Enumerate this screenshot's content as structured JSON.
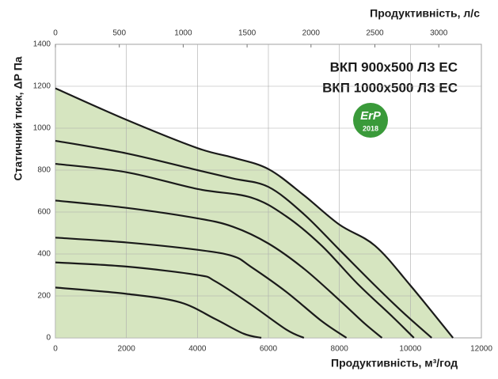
{
  "chart_data": {
    "type": "line",
    "titles": [
      "ВКП 900x500 ЛЗ ЕС",
      "ВКП 1000x500 ЛЗ ЕС"
    ],
    "badge": {
      "text": "ErP",
      "year": "2018",
      "color": "#3a9a3a"
    },
    "xlabel": "Продуктивність, м³/год",
    "x2label": "Продуктивність, л/с",
    "ylabel": "Статичний тиск, ΔР Па",
    "xlim": [
      0,
      12000
    ],
    "xticks": [
      0,
      2000,
      4000,
      6000,
      8000,
      10000,
      12000
    ],
    "x2lim": [
      0,
      3333.33
    ],
    "x2ticks": [
      0,
      500,
      1000,
      1500,
      2000,
      2500,
      3000
    ],
    "ylim": [
      0,
      1400
    ],
    "yticks": [
      0,
      200,
      400,
      600,
      800,
      1000,
      1200,
      1400
    ],
    "grid": true,
    "fill_color": "#d6e5c0",
    "fill_series": 0,
    "series": [
      {
        "color": "#1a1a1a",
        "x": [
          0,
          2000,
          4000,
          5000,
          6000,
          7000,
          8000,
          9000,
          10000,
          11200
        ],
        "values": [
          1190,
          1040,
          905,
          860,
          805,
          680,
          540,
          440,
          250,
          0
        ]
      },
      {
        "color": "#1a1a1a",
        "x": [
          0,
          2000,
          4000,
          5000,
          6000,
          7000,
          8000,
          9000,
          9800,
          10600
        ],
        "values": [
          940,
          880,
          800,
          760,
          720,
          590,
          420,
          250,
          120,
          0
        ]
      },
      {
        "color": "#1a1a1a",
        "x": [
          0,
          2000,
          4000,
          5500,
          6500,
          7500,
          8500,
          9500,
          10100
        ],
        "values": [
          830,
          790,
          710,
          670,
          580,
          440,
          260,
          100,
          0
        ]
      },
      {
        "color": "#1a1a1a",
        "x": [
          0,
          2000,
          4000,
          5000,
          6000,
          7000,
          8000,
          8700,
          9200
        ],
        "values": [
          655,
          620,
          570,
          530,
          450,
          330,
          180,
          70,
          0
        ]
      },
      {
        "color": "#1a1a1a",
        "x": [
          0,
          2000,
          4000,
          5000,
          5500,
          6500,
          7500,
          8200
        ],
        "values": [
          478,
          455,
          420,
          390,
          340,
          220,
          80,
          0
        ]
      },
      {
        "color": "#1a1a1a",
        "x": [
          0,
          2000,
          4000,
          4500,
          5500,
          6500,
          7000
        ],
        "values": [
          360,
          340,
          300,
          270,
          160,
          40,
          0
        ]
      },
      {
        "color": "#1a1a1a",
        "x": [
          0,
          2000,
          3500,
          4500,
          5300,
          5800
        ],
        "values": [
          240,
          210,
          170,
          90,
          20,
          0
        ]
      }
    ]
  }
}
